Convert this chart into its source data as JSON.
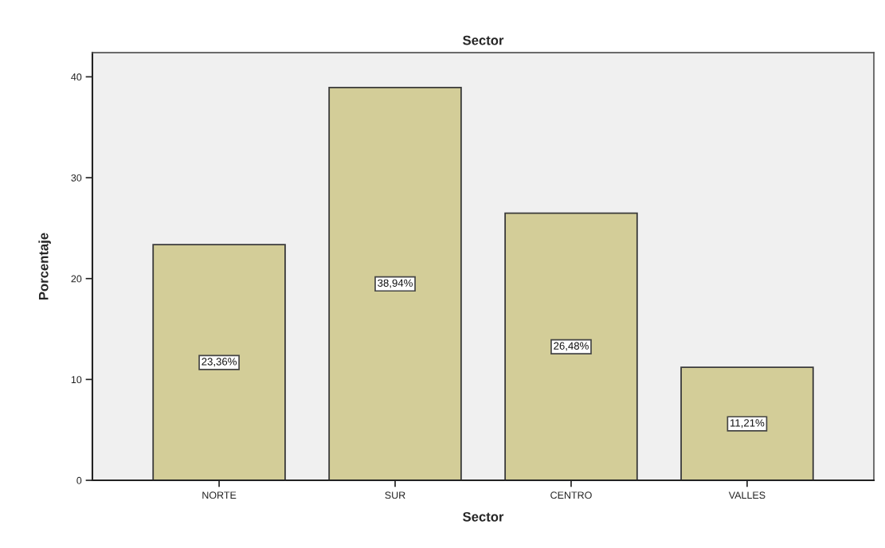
{
  "chart_data": {
    "type": "bar",
    "title": "Sector",
    "xlabel": "Sector",
    "ylabel": "Porcentaje",
    "categories": [
      "NORTE",
      "SUR",
      "CENTRO",
      "VALLES"
    ],
    "values": [
      23.36,
      38.94,
      26.48,
      11.21
    ],
    "value_labels": [
      "23,36%",
      "38,94%",
      "26,48%",
      "11,21%"
    ],
    "color": "#d3cd98",
    "ylim": [
      0,
      42.4
    ],
    "yticks": [
      0,
      10,
      20,
      30,
      40
    ]
  }
}
